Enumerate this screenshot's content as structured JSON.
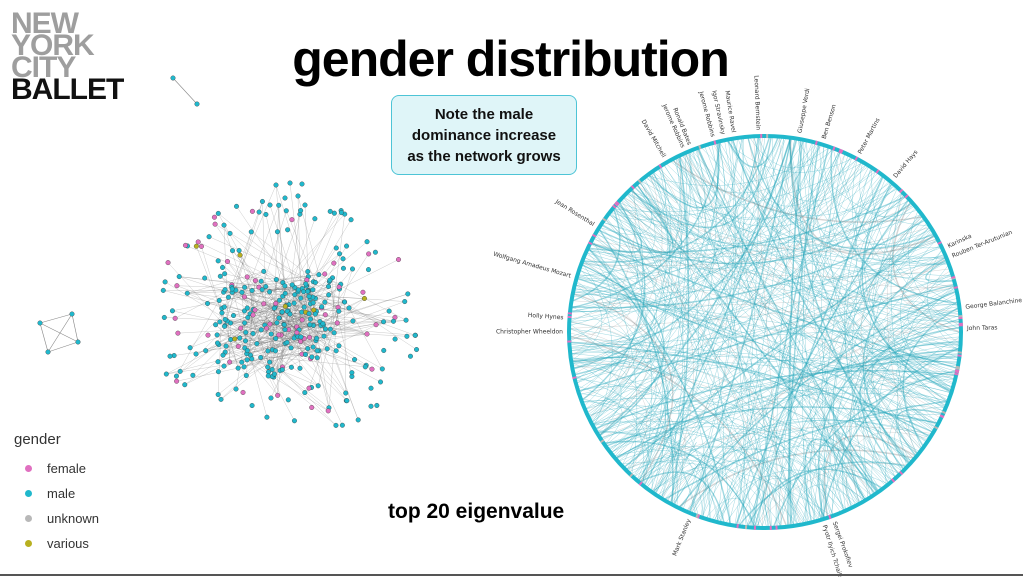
{
  "logo": {
    "line1": "NEW",
    "line2": "YORK",
    "line3": "CITY",
    "line4": "BALLET"
  },
  "title": "gender distribution",
  "note": "Note the male dominance increase as the network grows",
  "caption": "top 20 eigenvalue",
  "legend": {
    "title": "gender",
    "items": [
      {
        "label": "female",
        "color": "#e070c0"
      },
      {
        "label": "male",
        "color": "#20b8cc"
      },
      {
        "label": "unknown",
        "color": "#b8b8b8"
      },
      {
        "label": "various",
        "color": "#b8b020"
      }
    ]
  },
  "circle_labels": [
    "Leonard Bernstein",
    "Giuseppe Verdi",
    "Ben Benson",
    "Peter Martins",
    "David Hays",
    "Karinska",
    "Rouben Ter-Arutunian",
    "George Balanchine",
    "John Taras",
    "Sergei Prokofiev",
    "Pyotr Ilyich Tchaikovsky",
    "Mark Stanley",
    "Christopher Wheeldon",
    "Holly Hynes",
    "Wolfgang Amadeus Mozart",
    "Jean Rosenthal",
    "David Mitchell",
    "Jerome Robbins",
    "Igor Stravinsky",
    "Maurice Ravel",
    "Jerome Robbins",
    "Ronald Bates"
  ]
}
